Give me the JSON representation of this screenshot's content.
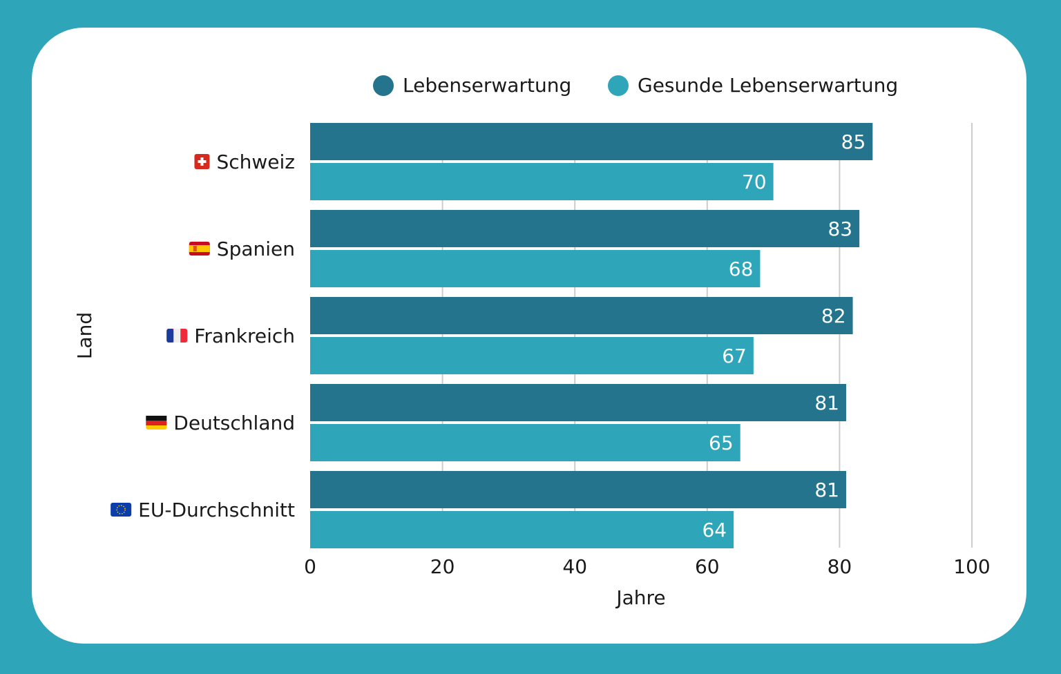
{
  "colors": {
    "background": "#2ea5b8",
    "card": "#ffffff",
    "series_dark": "#24748d",
    "series_light": "#2ea5b8",
    "grid": "#cccccc",
    "text": "#1a1a1a"
  },
  "chart_data": {
    "type": "bar",
    "orientation": "horizontal",
    "categories": [
      "Schweiz",
      "Spanien",
      "Frankreich",
      "Deutschland",
      "EU-Durchschnitt"
    ],
    "category_icons": [
      "flag-switzerland-icon",
      "flag-spain-icon",
      "flag-france-icon",
      "flag-germany-icon",
      "flag-eu-icon"
    ],
    "series": [
      {
        "name": "Lebenserwartung",
        "color": "#24748d",
        "values": [
          85,
          83,
          82,
          81,
          81
        ]
      },
      {
        "name": "Gesunde Lebenserwartung",
        "color": "#2ea5b8",
        "values": [
          70,
          68,
          67,
          65,
          64
        ]
      }
    ],
    "xlabel": "Jahre",
    "ylabel": "Land",
    "xlim": [
      0,
      100
    ],
    "xticks": [
      "0",
      "20",
      "40",
      "60",
      "80",
      "100"
    ],
    "grid": true,
    "legend": "top",
    "data_labels": true
  }
}
